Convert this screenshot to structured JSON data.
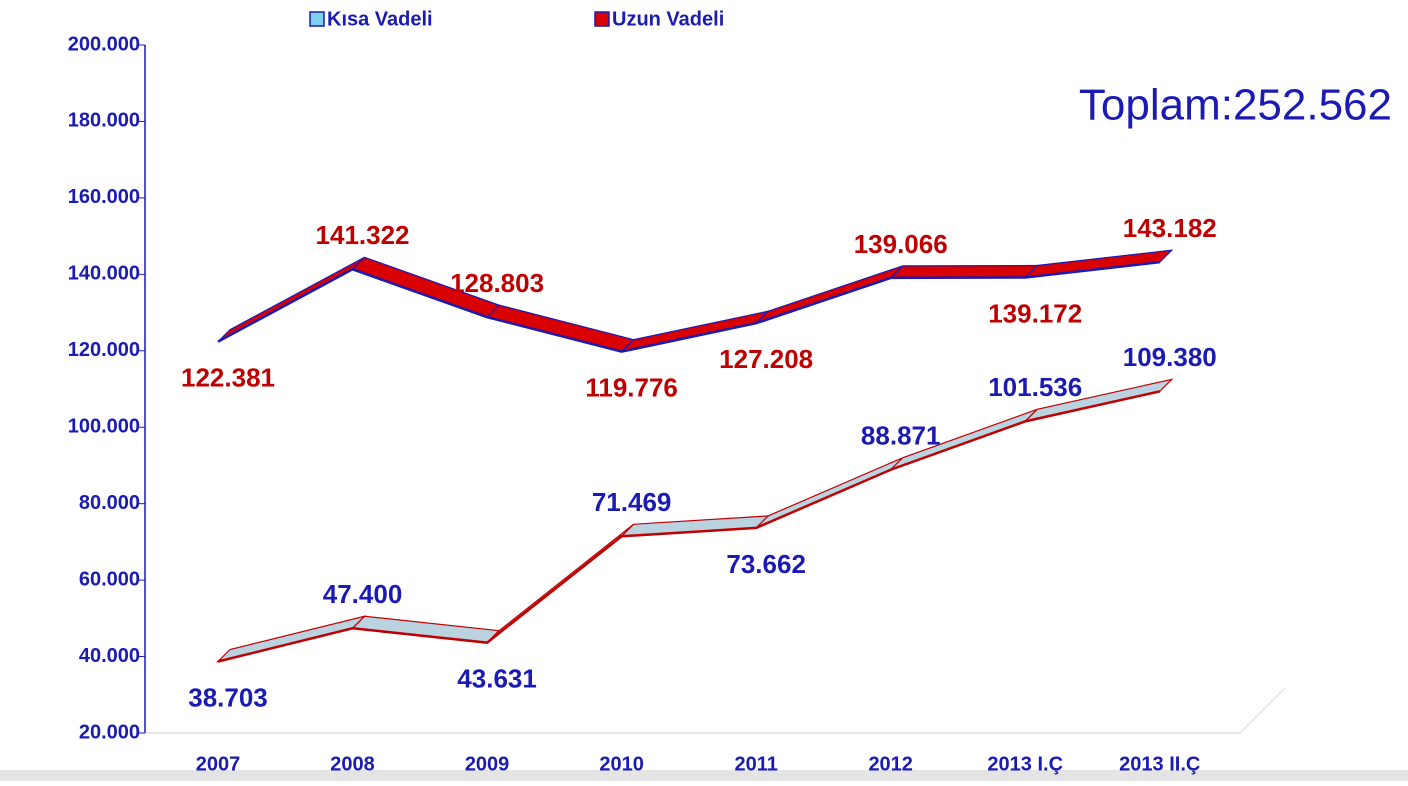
{
  "chart_data": {
    "type": "line",
    "annotation": "Toplam:252.562",
    "categories": [
      "2007",
      "2008",
      "2009",
      "2010",
      "2011",
      "2012",
      "2013 I.Ç",
      "2013 II.Ç"
    ],
    "series": [
      {
        "name": "Kısa Vadeli",
        "color": "#b9d3e0",
        "label_color": "#1a1ab4",
        "values": [
          38703,
          47400,
          43631,
          71469,
          73662,
          88871,
          101536,
          109380
        ],
        "value_labels": [
          "38.703",
          "47.400",
          "43.631",
          "71.469",
          "73.662",
          "88.871",
          "101.536",
          "109.380"
        ]
      },
      {
        "name": "Uzun Vadeli",
        "color": "#d80000",
        "label_color": "#c00000",
        "values": [
          122381,
          141322,
          128803,
          119776,
          127208,
          139066,
          139172,
          143182
        ],
        "value_labels": [
          "122.381",
          "141.322",
          "128.803",
          "119.776",
          "127.208",
          "139.066",
          "139.172",
          "143.182"
        ]
      }
    ],
    "ylim": [
      20000,
      200000
    ],
    "yticks": [
      {
        "value": 20000,
        "label": "20.000"
      },
      {
        "value": 40000,
        "label": "40.000"
      },
      {
        "value": 60000,
        "label": "60.000"
      },
      {
        "value": 80000,
        "label": "80.000"
      },
      {
        "value": 100000,
        "label": "100.000"
      },
      {
        "value": 120000,
        "label": "120.000"
      },
      {
        "value": 140000,
        "label": "140.000"
      },
      {
        "value": 160000,
        "label": "160.000"
      },
      {
        "value": 180000,
        "label": "180.000"
      },
      {
        "value": 200000,
        "label": "200.000"
      }
    ],
    "legend": "top"
  }
}
